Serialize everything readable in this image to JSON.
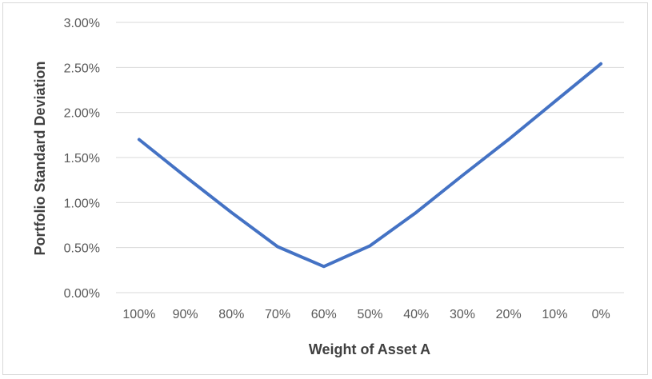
{
  "chart_data": {
    "type": "line",
    "title": "",
    "xlabel": "Weight of Asset A",
    "ylabel": "Portfolio Standard Deviation",
    "categories": [
      "100%",
      "90%",
      "80%",
      "70%",
      "60%",
      "50%",
      "40%",
      "30%",
      "20%",
      "10%",
      "0%"
    ],
    "series": [
      {
        "values": [
          1.7,
          1.29,
          0.89,
          0.51,
          0.29,
          0.52,
          0.89,
          1.3,
          1.7,
          2.12,
          2.54
        ]
      }
    ],
    "yticks": [
      "0.00%",
      "0.50%",
      "1.00%",
      "1.50%",
      "2.00%",
      "2.50%",
      "3.00%"
    ],
    "ylim": [
      0,
      3.0
    ],
    "grid": "horizontal",
    "legend": "none",
    "colors": {
      "series": "#4472c4",
      "grid": "#d9d9d9",
      "tick_text": "#595959",
      "title_text": "#404040"
    }
  }
}
